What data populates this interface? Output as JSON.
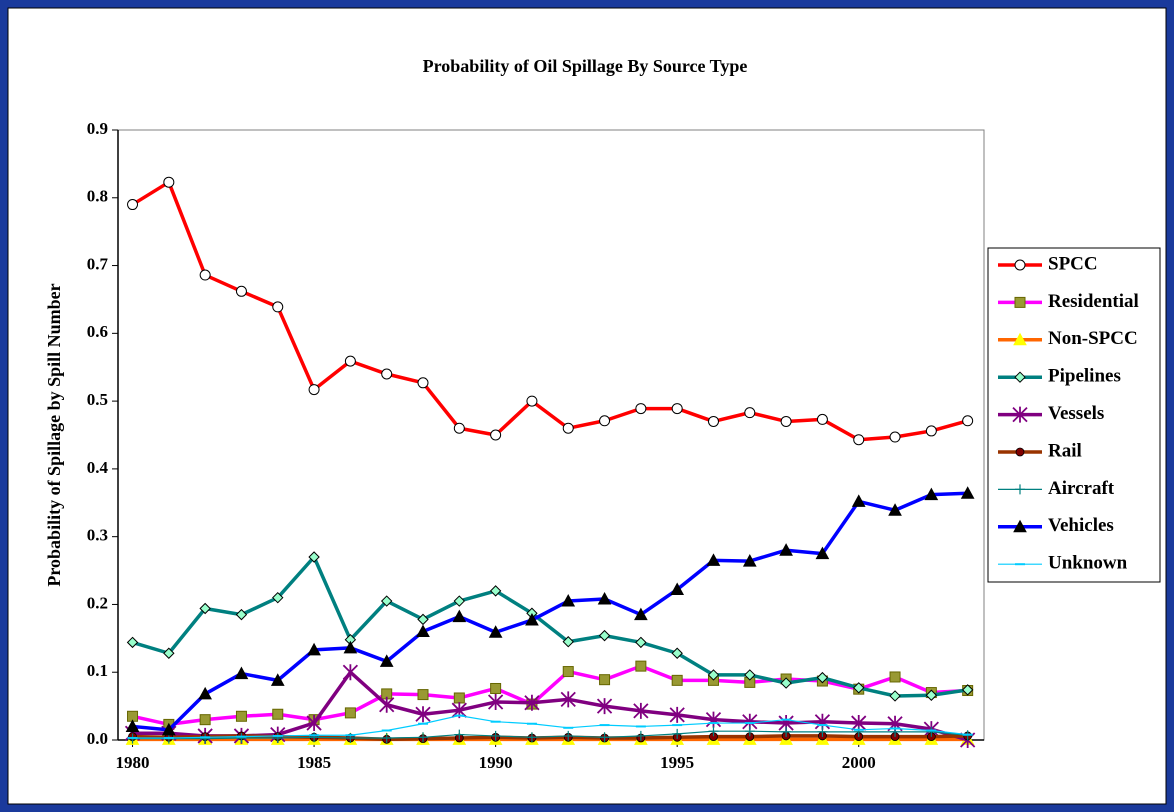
{
  "chart_data": {
    "type": "line",
    "title": "Probability of Oil Spillage By Source Type",
    "y_label": "Probability of Spillage by Spill Number",
    "x": [
      1980,
      1981,
      1982,
      1983,
      1984,
      1985,
      1986,
      1987,
      1988,
      1989,
      1990,
      1991,
      1992,
      1993,
      1994,
      1995,
      1996,
      1997,
      1998,
      1999,
      2000,
      2001,
      2002,
      2003
    ],
    "xlim": [
      1979.6,
      2003.45
    ],
    "xticks": [
      1980,
      1985,
      1990,
      1995,
      2000
    ],
    "ylim": [
      0,
      0.9
    ],
    "yticks": [
      {
        "value": 0,
        "label": "0.0"
      },
      0.1,
      0.2,
      0.3,
      0.4,
      0.5,
      0.6,
      0.7,
      0.8,
      0.9
    ],
    "grid": false,
    "legend": "right",
    "series": [
      {
        "name": "SPCC",
        "color": "#ff0000",
        "marker": "circle",
        "marker_color": "#ffffff",
        "values": [
          0.79,
          0.823,
          0.686,
          0.662,
          0.639,
          0.517,
          0.559,
          0.54,
          0.527,
          0.46,
          0.45,
          0.5,
          0.46,
          0.471,
          0.489,
          0.489,
          0.47,
          0.483,
          0.47,
          0.473,
          0.443,
          0.447,
          0.456,
          0.471
        ]
      },
      {
        "name": "Residential",
        "color": "#ff00ff",
        "marker": "square",
        "marker_color": "#999933",
        "values": [
          0.035,
          0.023,
          0.03,
          0.035,
          0.038,
          0.03,
          0.04,
          0.068,
          0.067,
          0.062,
          0.076,
          0.053,
          0.101,
          0.089,
          0.109,
          0.088,
          0.088,
          0.085,
          0.09,
          0.087,
          0.075,
          0.093,
          0.07,
          0.073
        ]
      },
      {
        "name": "Non-SPCC",
        "color": "#ff6600",
        "marker": "triangle",
        "marker_color": "#ffff00",
        "values": [
          0.001,
          0.001,
          0.001,
          0.001,
          0.001,
          0.001,
          0.001,
          0.001,
          0.001,
          0.001,
          0.001,
          0.001,
          0.001,
          0.001,
          0.001,
          0.001,
          0.001,
          0.001,
          0.001,
          0.001,
          0.001,
          0.001,
          0.001,
          0.001
        ]
      },
      {
        "name": "Pipelines",
        "color": "#008080",
        "marker": "diamond",
        "marker_color": "#99ffcc",
        "values": [
          0.144,
          0.128,
          0.194,
          0.185,
          0.21,
          0.27,
          0.148,
          0.205,
          0.178,
          0.205,
          0.22,
          0.187,
          0.145,
          0.154,
          0.144,
          0.128,
          0.096,
          0.096,
          0.084,
          0.092,
          0.077,
          0.065,
          0.066,
          0.074
        ]
      },
      {
        "name": "Vessels",
        "color": "#800080",
        "marker": "asterisk",
        "marker_color": "#800080",
        "values": [
          0.01,
          0.01,
          0.006,
          0.006,
          0.008,
          0.025,
          0.1,
          0.052,
          0.038,
          0.044,
          0.056,
          0.055,
          0.06,
          0.05,
          0.043,
          0.037,
          0.03,
          0.027,
          0.025,
          0.027,
          0.025,
          0.024,
          0.016,
          0.0
        ]
      },
      {
        "name": "Rail",
        "color": "#993300",
        "marker": "dot",
        "marker_color": "#800000",
        "values": [
          0.005,
          0.004,
          0.005,
          0.006,
          0.005,
          0.004,
          0.003,
          0.001,
          0.002,
          0.003,
          0.004,
          0.003,
          0.004,
          0.003,
          0.003,
          0.004,
          0.005,
          0.005,
          0.006,
          0.006,
          0.005,
          0.005,
          0.005,
          0.006
        ]
      },
      {
        "name": "Aircraft",
        "color": "#008080",
        "marker": "plus",
        "marker_color": "#008080",
        "values": [
          0.002,
          0.002,
          0.002,
          0.003,
          0.003,
          0.004,
          0.003,
          0.003,
          0.004,
          0.008,
          0.006,
          0.004,
          0.006,
          0.004,
          0.006,
          0.009,
          0.013,
          0.013,
          0.012,
          0.012,
          0.012,
          0.012,
          0.012,
          0.007
        ]
      },
      {
        "name": "Vehicles",
        "color": "#0000ff",
        "marker": "triangle",
        "marker_color": "#000000",
        "values": [
          0.02,
          0.015,
          0.068,
          0.098,
          0.088,
          0.133,
          0.136,
          0.116,
          0.16,
          0.182,
          0.159,
          0.177,
          0.205,
          0.208,
          0.185,
          0.222,
          0.265,
          0.264,
          0.28,
          0.275,
          0.352,
          0.339,
          0.362,
          0.364
        ]
      },
      {
        "name": "Unknown",
        "color": "#00ccff",
        "marker": "dash",
        "marker_color": "#00ccff",
        "values": [
          0.003,
          0.003,
          0.004,
          0.005,
          0.006,
          0.007,
          0.007,
          0.014,
          0.024,
          0.036,
          0.027,
          0.024,
          0.018,
          0.022,
          0.02,
          0.022,
          0.025,
          0.025,
          0.03,
          0.022,
          0.015,
          0.017,
          0.014,
          0.008
        ]
      }
    ]
  }
}
